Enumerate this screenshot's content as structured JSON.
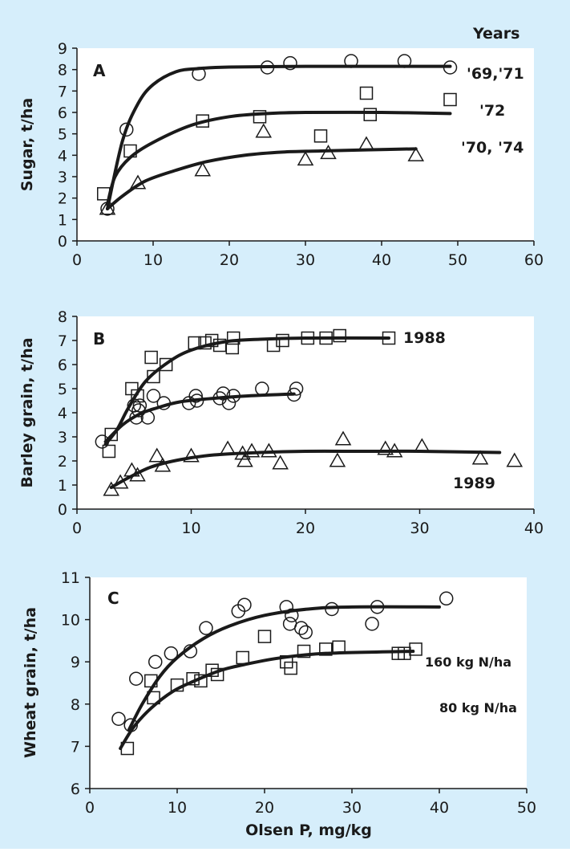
{
  "colors": {
    "background": "#d6eefb",
    "ink": "#1a1a1a",
    "plot_bg": "#ffffff"
  },
  "chart_data": [
    {
      "type": "scatter",
      "panel_label": "A",
      "xlim": [
        0,
        60
      ],
      "ylim": [
        0,
        9
      ],
      "xticks": [
        0,
        10,
        20,
        30,
        40,
        50,
        60
      ],
      "yticks": [
        0,
        1,
        2,
        3,
        4,
        5,
        6,
        7,
        8,
        9
      ],
      "xlabel": "",
      "ylabel": "Sugar, t/ha",
      "legend_title": "Years",
      "series": [
        {
          "name": "'69,'71",
          "marker": "circle",
          "points": [
            [
              4,
              1.5
            ],
            [
              6.5,
              5.2
            ],
            [
              16,
              7.8
            ],
            [
              25,
              8.1
            ],
            [
              28,
              8.3
            ],
            [
              36,
              8.4
            ],
            [
              43,
              8.4
            ],
            [
              49,
              8.1
            ]
          ],
          "curve": [
            [
              4,
              1.5
            ],
            [
              6,
              4.7
            ],
            [
              8,
              6.4
            ],
            [
              10,
              7.3
            ],
            [
              13,
              7.9
            ],
            [
              16,
              8.05
            ],
            [
              20,
              8.12
            ],
            [
              30,
              8.15
            ],
            [
              40,
              8.15
            ],
            [
              49,
              8.15
            ]
          ]
        },
        {
          "name": "'72",
          "marker": "square",
          "points": [
            [
              3.5,
              2.2
            ],
            [
              7,
              4.2
            ],
            [
              16.5,
              5.6
            ],
            [
              24,
              5.8
            ],
            [
              32,
              4.9
            ],
            [
              38,
              6.9
            ],
            [
              38.5,
              5.9
            ],
            [
              49,
              6.6
            ]
          ],
          "curve": [
            [
              4,
              1.7
            ],
            [
              5,
              3.0
            ],
            [
              7,
              3.9
            ],
            [
              10,
              4.6
            ],
            [
              15,
              5.4
            ],
            [
              20,
              5.8
            ],
            [
              25,
              5.95
            ],
            [
              30,
              6.0
            ],
            [
              40,
              6.0
            ],
            [
              49,
              5.95
            ]
          ]
        },
        {
          "name": "'70, '74",
          "marker": "triangle",
          "points": [
            [
              4,
              1.5
            ],
            [
              8,
              2.7
            ],
            [
              16.5,
              3.3
            ],
            [
              24.5,
              5.1
            ],
            [
              30,
              3.8
            ],
            [
              33,
              4.1
            ],
            [
              38,
              4.5
            ],
            [
              44.5,
              4.0
            ]
          ],
          "curve": [
            [
              4,
              1.5
            ],
            [
              6,
              2.1
            ],
            [
              9,
              2.8
            ],
            [
              13,
              3.3
            ],
            [
              17,
              3.7
            ],
            [
              22,
              4.0
            ],
            [
              27,
              4.15
            ],
            [
              32,
              4.2
            ],
            [
              38,
              4.25
            ],
            [
              44.5,
              4.3
            ]
          ]
        }
      ]
    },
    {
      "type": "scatter",
      "panel_label": "B",
      "xlim": [
        0,
        40
      ],
      "ylim": [
        0,
        8
      ],
      "xticks": [
        0,
        10,
        20,
        30,
        40
      ],
      "yticks": [
        0,
        1,
        2,
        3,
        4,
        5,
        6,
        7,
        8
      ],
      "xlabel": "",
      "ylabel": "Barley grain, t/ha",
      "series": [
        {
          "name": "1988",
          "marker": "square",
          "points": [
            [
              2.8,
              2.4
            ],
            [
              3,
              3.1
            ],
            [
              4.8,
              5.0
            ],
            [
              5.3,
              4.7
            ],
            [
              6.5,
              6.3
            ],
            [
              6.7,
              5.5
            ],
            [
              7.8,
              6.0
            ],
            [
              10.3,
              6.9
            ],
            [
              11.2,
              6.9
            ],
            [
              11.8,
              7.0
            ],
            [
              12.5,
              6.8
            ],
            [
              13.6,
              6.7
            ],
            [
              13.7,
              7.1
            ],
            [
              17.2,
              6.8
            ],
            [
              18,
              7.0
            ],
            [
              20.2,
              7.1
            ],
            [
              21.8,
              7.1
            ],
            [
              23,
              7.2
            ],
            [
              27.3,
              7.1
            ]
          ],
          "curve": [
            [
              2.5,
              2.7
            ],
            [
              3.5,
              3.3
            ],
            [
              4.5,
              4.2
            ],
            [
              6,
              5.3
            ],
            [
              8,
              6.1
            ],
            [
              10,
              6.6
            ],
            [
              13,
              6.95
            ],
            [
              16,
              7.05
            ],
            [
              20,
              7.1
            ],
            [
              27.3,
              7.1
            ]
          ]
        },
        {
          "name": "",
          "marker": "circle",
          "points": [
            [
              2.2,
              2.8
            ],
            [
              5,
              4.3
            ],
            [
              5.2,
              3.8
            ],
            [
              5.4,
              4.1
            ],
            [
              5.5,
              4.3
            ],
            [
              6.2,
              3.8
            ],
            [
              6.7,
              4.7
            ],
            [
              7.6,
              4.4
            ],
            [
              9.8,
              4.4
            ],
            [
              10.4,
              4.7
            ],
            [
              10.5,
              4.5
            ],
            [
              12.5,
              4.6
            ],
            [
              12.8,
              4.8
            ],
            [
              13.3,
              4.4
            ],
            [
              13.7,
              4.7
            ],
            [
              16.2,
              5.0
            ],
            [
              19,
              4.75
            ],
            [
              19.2,
              5.0
            ]
          ],
          "curve": [
            [
              2.5,
              2.8
            ],
            [
              4,
              3.5
            ],
            [
              5.5,
              3.95
            ],
            [
              7,
              4.2
            ],
            [
              9,
              4.45
            ],
            [
              12,
              4.6
            ],
            [
              15,
              4.7
            ],
            [
              19,
              4.78
            ]
          ]
        },
        {
          "name": "1989",
          "marker": "triangle",
          "points": [
            [
              3,
              0.8
            ],
            [
              3.8,
              1.1
            ],
            [
              4.8,
              1.6
            ],
            [
              5.3,
              1.4
            ],
            [
              7,
              2.2
            ],
            [
              7.5,
              1.8
            ],
            [
              10,
              2.2
            ],
            [
              13.2,
              2.5
            ],
            [
              14.5,
              2.3
            ],
            [
              14.7,
              2.0
            ],
            [
              15.3,
              2.4
            ],
            [
              16.8,
              2.4
            ],
            [
              17.8,
              1.9
            ],
            [
              22.8,
              2.0
            ],
            [
              23.3,
              2.9
            ],
            [
              27,
              2.5
            ],
            [
              27.8,
              2.4
            ],
            [
              30.2,
              2.6
            ],
            [
              35.3,
              2.1
            ],
            [
              38.3,
              2.0
            ]
          ],
          "curve": [
            [
              3,
              0.9
            ],
            [
              4.5,
              1.3
            ],
            [
              6.5,
              1.75
            ],
            [
              9,
              2.05
            ],
            [
              12,
              2.25
            ],
            [
              16,
              2.35
            ],
            [
              20,
              2.4
            ],
            [
              25,
              2.4
            ],
            [
              30,
              2.4
            ],
            [
              37,
              2.35
            ]
          ]
        }
      ]
    },
    {
      "type": "scatter",
      "panel_label": "C",
      "xlim": [
        0,
        50
      ],
      "ylim": [
        6,
        11
      ],
      "xticks": [
        0,
        10,
        20,
        30,
        40,
        50
      ],
      "yticks": [
        6,
        7,
        8,
        9,
        10,
        11
      ],
      "xlabel": "Olsen P, mg/kg",
      "ylabel": "Wheat grain, t/ha",
      "series": [
        {
          "name": "160 kg N/ha",
          "marker": "circle",
          "points": [
            [
              3.3,
              7.65
            ],
            [
              4.7,
              7.5
            ],
            [
              5.3,
              8.6
            ],
            [
              7.5,
              9.0
            ],
            [
              9.3,
              9.2
            ],
            [
              11.5,
              9.25
            ],
            [
              13.3,
              9.8
            ],
            [
              17,
              10.2
            ],
            [
              17.7,
              10.35
            ],
            [
              22.5,
              10.3
            ],
            [
              22.9,
              9.9
            ],
            [
              23.1,
              10.1
            ],
            [
              24.2,
              9.8
            ],
            [
              24.7,
              9.7
            ],
            [
              27.7,
              10.25
            ],
            [
              32.3,
              9.9
            ],
            [
              32.9,
              10.3
            ],
            [
              40.8,
              10.5
            ]
          ],
          "curve": [
            [
              4.5,
              7.4
            ],
            [
              6,
              8.0
            ],
            [
              8,
              8.65
            ],
            [
              10,
              9.1
            ],
            [
              13,
              9.55
            ],
            [
              16,
              9.85
            ],
            [
              20,
              10.1
            ],
            [
              25,
              10.25
            ],
            [
              30,
              10.3
            ],
            [
              40,
              10.3
            ]
          ]
        },
        {
          "name": "80 kg N/ha",
          "marker": "square",
          "points": [
            [
              4.3,
              6.95
            ],
            [
              7,
              8.55
            ],
            [
              7.3,
              8.15
            ],
            [
              10,
              8.45
            ],
            [
              11.8,
              8.6
            ],
            [
              12.7,
              8.55
            ],
            [
              14,
              8.8
            ],
            [
              14.6,
              8.7
            ],
            [
              17.5,
              9.1
            ],
            [
              20,
              9.6
            ],
            [
              22.5,
              9.0
            ],
            [
              23,
              8.85
            ],
            [
              24.5,
              9.25
            ],
            [
              27,
              9.3
            ],
            [
              28.5,
              9.35
            ],
            [
              35.3,
              9.2
            ],
            [
              36,
              9.2
            ],
            [
              37.3,
              9.3
            ]
          ],
          "curve": [
            [
              3.5,
              6.95
            ],
            [
              5,
              7.45
            ],
            [
              7,
              7.9
            ],
            [
              9.5,
              8.3
            ],
            [
              12,
              8.55
            ],
            [
              15,
              8.8
            ],
            [
              18,
              8.95
            ],
            [
              22,
              9.1
            ],
            [
              27,
              9.2
            ],
            [
              37,
              9.25
            ]
          ]
        }
      ]
    }
  ]
}
